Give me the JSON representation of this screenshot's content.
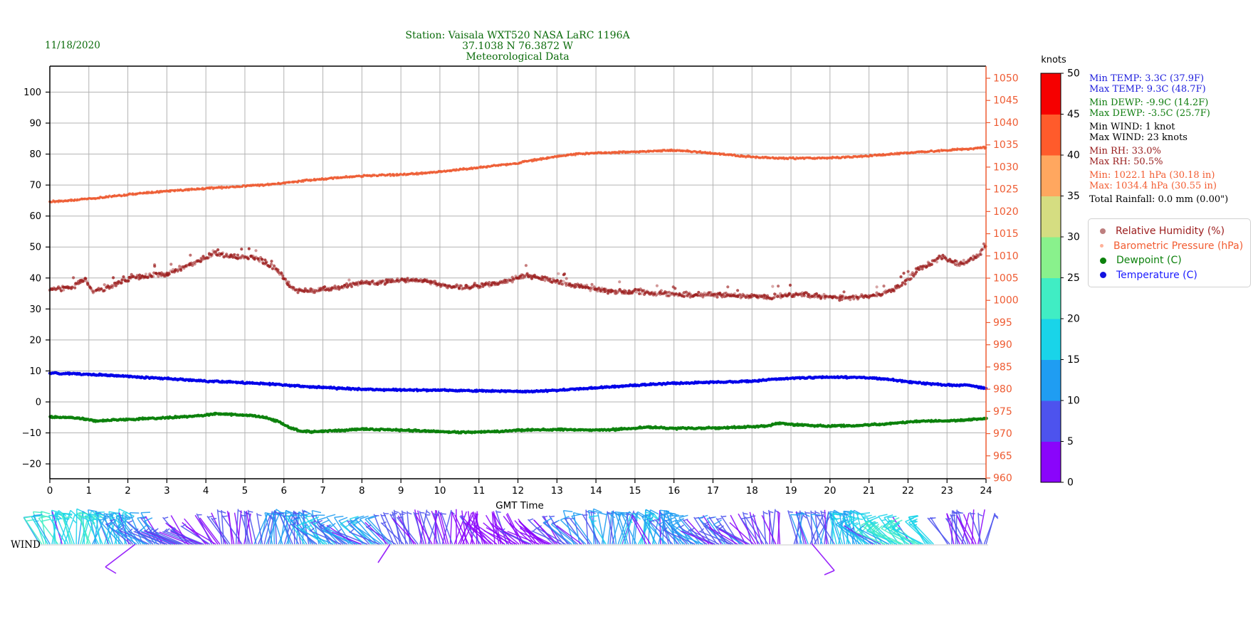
{
  "date": "11/18/2020",
  "title": {
    "line1": "Station:  Vaisala WXT520  NASA LaRC 1196A",
    "line2": "37.1038 N 76.3872 W",
    "line3": "Meteorological Data"
  },
  "wind_label": "WIND",
  "colors": {
    "title_green": "#0a6b0a",
    "temp_blue": "#0202e8",
    "dew_green": "#0c810c",
    "rh_dark_red": "#9b1c1c",
    "pressure_orange": "#ee5b32",
    "grid_gray": "#b3b3b3"
  },
  "axes": {
    "xlabel": "GMT Time",
    "x_ticks": [
      "0",
      "1",
      "2",
      "3",
      "4",
      "5",
      "6",
      "7",
      "8",
      "9",
      "10",
      "11",
      "12",
      "13",
      "14",
      "15",
      "16",
      "17",
      "18",
      "19",
      "20",
      "21",
      "22",
      "23",
      "24"
    ],
    "left_ticks": [
      "100",
      "90",
      "80",
      "70",
      "60",
      "50",
      "40",
      "30",
      "20",
      "10",
      "0",
      "−10",
      "−20"
    ],
    "right_ticks": [
      "1050",
      "1045",
      "1040",
      "1035",
      "1030",
      "1025",
      "1020",
      "1015",
      "1010",
      "1005",
      "1000",
      "995",
      "990",
      "985",
      "980",
      "975",
      "970",
      "965",
      "960"
    ]
  },
  "colorbar": {
    "title": "knots",
    "ticks": [
      "0",
      "5",
      "10",
      "15",
      "20",
      "25",
      "30",
      "35",
      "40",
      "45",
      "50"
    ],
    "band_colors": [
      "#8a05fb",
      "#4d53ee",
      "#1f9df2",
      "#19d4e9",
      "#40edc4",
      "#89f18c",
      "#d5dd81",
      "#ffa75f",
      "#ff5b2b",
      "#f60000"
    ]
  },
  "stats_lines": [
    {
      "text": "Min TEMP: 3.3C (37.9F)",
      "color": "#2020dd"
    },
    {
      "text": "Max TEMP: 9.3C (48.7F)",
      "color": "#2020dd"
    },
    {
      "text": "Min DEWP: -9.9C (14.2F)",
      "color": "#0f7d0f"
    },
    {
      "text": "Max DEWP: -3.5C (25.7F)",
      "color": "#0f7d0f"
    },
    {
      "text": "Min WIND: 1 knot",
      "color": "#000000"
    },
    {
      "text": "Max WIND: 23 knots",
      "color": "#000000"
    },
    {
      "text": "Min RH: 33.0%",
      "color": "#971b1b"
    },
    {
      "text": "Max RH: 50.5%",
      "color": "#971b1b"
    },
    {
      "text": "Min: 1022.1 hPa (30.18 in)",
      "color": "#f25c31"
    },
    {
      "text": "Max: 1034.4 hPa (30.55 in)",
      "color": "#f25c31"
    },
    {
      "text": "Total Rainfall: 0.0 mm (0.00\")",
      "color": "#000000"
    }
  ],
  "legend": {
    "items": [
      {
        "label": "Relative Humidity (%)",
        "color": "#9b1c1c",
        "dot": "#bd7f7f",
        "dot_size": 8
      },
      {
        "label": "Barometric Pressure (hPa)",
        "color": "#f25c31",
        "dot": "#ffb199",
        "dot_size": 5
      },
      {
        "label": "Dewpoint (C)",
        "color": "#0c810c",
        "dot": "#0c810c",
        "dot_size": 9
      },
      {
        "label": "Temperature (C)",
        "color": "#1a1aff",
        "dot": "#1212e0",
        "dot_size": 9
      }
    ]
  },
  "chart_data": {
    "type": "scatter",
    "title": "Station:  Vaisala WXT520  NASA LaRC 1196A / 37.1038 N 76.3872 W / Meteorological Data",
    "xlabel": "GMT Time",
    "x_range": [
      0,
      24
    ],
    "grid": true,
    "left_axis": {
      "lim": [
        -24.8,
        108.2
      ],
      "ticks": [
        100,
        90,
        80,
        70,
        60,
        50,
        40,
        30,
        20,
        10,
        0,
        -10,
        -20
      ]
    },
    "right_axis": {
      "lim": [
        959.8,
        1052.7
      ],
      "ticks": [
        1050,
        1045,
        1040,
        1035,
        1030,
        1025,
        1020,
        1015,
        1010,
        1005,
        1000,
        995,
        990,
        985,
        980,
        975,
        970,
        965,
        960
      ],
      "color": "#ee5b32"
    },
    "series": [
      {
        "id": "pressure",
        "name": "Barometric Pressure (hPa)",
        "axis": "right",
        "color": "#ee5b32",
        "marker": {
          "r": 1.7,
          "jitter": 0.12,
          "opacity": 0.8,
          "outliers": false
        },
        "x": [
          0,
          0.5,
          1,
          1.5,
          2,
          2.5,
          3,
          3.5,
          4,
          4.5,
          5,
          5.5,
          6,
          6.5,
          7,
          7.5,
          8,
          8.5,
          9,
          9.5,
          10,
          10.5,
          11,
          11.5,
          12,
          12.5,
          13,
          13.5,
          14,
          14.5,
          15,
          15.5,
          15.8,
          16.2,
          16.6,
          17,
          17.5,
          18,
          18.5,
          19,
          19.5,
          20,
          20.5,
          21,
          21.5,
          22,
          22.5,
          23,
          23.5,
          24
        ],
        "y": [
          1022.2,
          1022.5,
          1022.9,
          1023.3,
          1023.8,
          1024.2,
          1024.6,
          1024.9,
          1025.2,
          1025.4,
          1025.7,
          1026.0,
          1026.4,
          1026.9,
          1027.3,
          1027.7,
          1028.0,
          1028.2,
          1028.3,
          1028.6,
          1029.0,
          1029.4,
          1029.9,
          1030.4,
          1030.9,
          1031.7,
          1032.4,
          1032.9,
          1033.2,
          1033.3,
          1033.4,
          1033.6,
          1033.8,
          1033.7,
          1033.4,
          1033.1,
          1032.7,
          1032.3,
          1032.1,
          1032.0,
          1032.0,
          1032.1,
          1032.3,
          1032.5,
          1032.9,
          1033.2,
          1033.5,
          1033.8,
          1034.1,
          1034.4
        ]
      },
      {
        "id": "rh",
        "name": "Relative Humidity (%)",
        "axis": "left",
        "color": "#9b1c1c",
        "marker": {
          "r": 2.1,
          "jitter": 0.45,
          "opacity": 0.55,
          "outliers": true
        },
        "x": [
          0,
          0.3,
          0.6,
          0.9,
          1.1,
          1.4,
          1.7,
          2,
          2.3,
          2.6,
          3,
          3.3,
          3.6,
          4,
          4.2,
          4.5,
          4.8,
          5.1,
          5.4,
          5.7,
          5.9,
          6.1,
          6.3,
          6.6,
          7,
          7.3,
          7.6,
          8,
          8.3,
          8.6,
          9,
          9.3,
          9.6,
          10,
          10.3,
          10.6,
          11,
          11.3,
          11.6,
          12,
          12.2,
          12.5,
          13,
          13.3,
          13.6,
          14,
          14.3,
          14.6,
          15,
          15.5,
          16,
          16.5,
          17,
          17.5,
          18,
          18.3,
          18.6,
          19,
          19.3,
          19.6,
          20,
          20.3,
          20.6,
          21,
          21.3,
          21.6,
          21.9,
          22.1,
          22.3,
          22.5,
          22.7,
          22.9,
          23.1,
          23.3,
          23.5,
          23.7,
          23.85,
          24
        ],
        "y": [
          36.5,
          36.7,
          37.4,
          39.6,
          35.6,
          36.4,
          38.2,
          39.4,
          40.6,
          41.0,
          41.4,
          42.8,
          44.4,
          46.6,
          48.2,
          47.4,
          46.8,
          46.9,
          46.0,
          43.8,
          41.5,
          38.5,
          36.2,
          35.7,
          36.3,
          36.6,
          37.4,
          38.7,
          38.5,
          38.8,
          39.2,
          39.5,
          38.8,
          37.9,
          37.2,
          37.1,
          37.6,
          38.0,
          38.7,
          39.9,
          40.7,
          40.2,
          38.8,
          38.0,
          37.3,
          36.4,
          35.8,
          35.4,
          35.6,
          35.0,
          34.9,
          34.6,
          34.6,
          34.3,
          34.3,
          33.9,
          34.1,
          34.5,
          34.6,
          34.3,
          33.9,
          33.6,
          33.8,
          34.2,
          34.8,
          36.3,
          38.4,
          40.8,
          43.3,
          44.2,
          45.7,
          46.8,
          45.4,
          44.6,
          45.2,
          46.5,
          47.9,
          50.0
        ]
      },
      {
        "id": "temperature",
        "name": "Temperature (C)",
        "axis": "left",
        "color": "#0202e8",
        "marker": {
          "r": 2.1,
          "jitter": 0.16,
          "opacity": 0.92,
          "outliers": false
        },
        "x": [
          0,
          0.5,
          1,
          1.5,
          2,
          2.5,
          3,
          3.5,
          4,
          4.5,
          5,
          5.5,
          6,
          6.5,
          7,
          7.5,
          8,
          8.5,
          9,
          9.5,
          10,
          10.5,
          11,
          11.5,
          12,
          12.3,
          12.6,
          13,
          13.5,
          14,
          14.5,
          15,
          15.5,
          16,
          16.5,
          17,
          17.5,
          18,
          18.5,
          19,
          19.3,
          19.6,
          20,
          20.5,
          21,
          21.3,
          21.6,
          22,
          22.3,
          22.6,
          23,
          23.2,
          23.4,
          23.6,
          23.8,
          24
        ],
        "y": [
          9.3,
          9.15,
          8.9,
          8.6,
          8.25,
          7.85,
          7.5,
          7.1,
          6.75,
          6.45,
          6.2,
          5.9,
          5.45,
          5.05,
          4.65,
          4.35,
          4.1,
          3.95,
          3.85,
          3.8,
          3.75,
          3.6,
          3.6,
          3.5,
          3.4,
          3.35,
          3.5,
          3.75,
          4.15,
          4.55,
          4.95,
          5.35,
          5.75,
          6.0,
          6.2,
          6.35,
          6.5,
          6.7,
          7.2,
          7.6,
          7.8,
          7.9,
          8.0,
          7.95,
          7.8,
          7.5,
          7.1,
          6.5,
          6.1,
          5.8,
          5.5,
          5.35,
          5.45,
          5.2,
          4.8,
          4.4
        ]
      },
      {
        "id": "dewpoint",
        "name": "Dewpoint (C)",
        "axis": "left",
        "color": "#0c810c",
        "marker": {
          "r": 2.1,
          "jitter": 0.16,
          "opacity": 0.92,
          "outliers": false
        },
        "x": [
          0,
          0.4,
          0.8,
          1.2,
          1.5,
          2,
          2.5,
          3,
          3.5,
          4,
          4.3,
          4.6,
          5,
          5.3,
          5.6,
          5.9,
          6.1,
          6.4,
          6.7,
          7,
          7.5,
          8,
          8.5,
          9,
          9.5,
          10,
          10.5,
          11,
          11.5,
          12,
          12.5,
          13,
          13.5,
          14,
          14.5,
          15,
          15.3,
          15.6,
          16,
          16.5,
          17,
          17.5,
          18,
          18.4,
          18.7,
          19,
          19.5,
          20,
          20.5,
          21,
          21.4,
          21.8,
          22.2,
          22.6,
          23,
          23.4,
          23.7,
          24
        ],
        "y": [
          -4.8,
          -5.0,
          -5.3,
          -6.2,
          -5.9,
          -5.6,
          -5.4,
          -5.1,
          -4.7,
          -4.2,
          -3.8,
          -4.0,
          -4.3,
          -4.6,
          -5.2,
          -6.6,
          -8.0,
          -9.3,
          -9.6,
          -9.4,
          -9.2,
          -8.7,
          -8.9,
          -9.1,
          -9.3,
          -9.6,
          -9.8,
          -9.7,
          -9.5,
          -9.2,
          -9.0,
          -8.9,
          -9.0,
          -9.1,
          -8.9,
          -8.5,
          -8.0,
          -8.3,
          -8.6,
          -8.5,
          -8.4,
          -8.2,
          -8.0,
          -7.7,
          -6.9,
          -7.3,
          -7.6,
          -7.8,
          -7.7,
          -7.4,
          -7.1,
          -6.7,
          -6.3,
          -6.1,
          -6.1,
          -5.9,
          -5.6,
          -5.3
        ]
      }
    ],
    "wind_barbs": {
      "min_knots": 1,
      "max_knots": 23,
      "colormap": "rainbow",
      "bands_knots": [
        0,
        5,
        10,
        15,
        20,
        25,
        30,
        35,
        40,
        45,
        50
      ]
    }
  }
}
